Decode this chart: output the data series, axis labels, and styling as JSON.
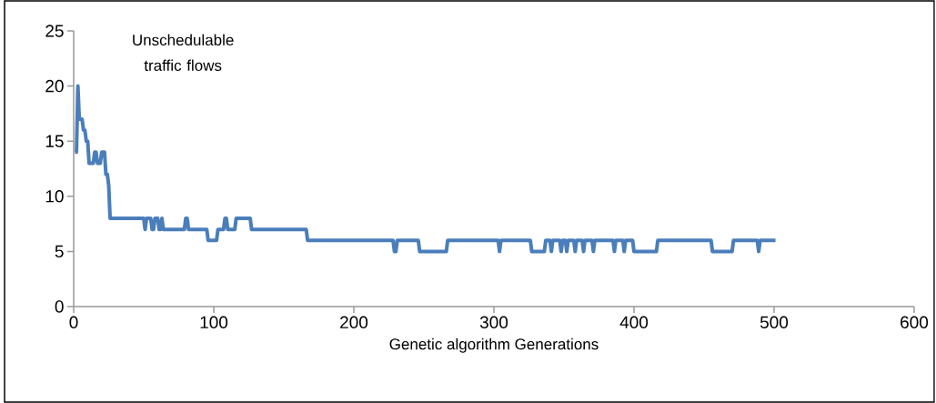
{
  "chart_data": {
    "type": "line",
    "xlabel": "Genetic algorithm Generations",
    "annotations": [
      "Unschedulable traffic flows"
    ],
    "xlim": [
      0,
      600
    ],
    "ylim": [
      0,
      25
    ],
    "xticks": [
      0,
      100,
      200,
      300,
      400,
      500,
      600
    ],
    "yticks": [
      0,
      5,
      10,
      15,
      20,
      25
    ],
    "grid": false,
    "line_style": "solid",
    "series": [
      {
        "color": "#4a7ebb",
        "x": [
          1,
          2,
          3,
          4,
          6,
          7,
          8,
          9,
          10,
          11,
          14,
          15,
          16,
          17,
          19,
          20,
          22,
          23,
          24,
          25,
          26,
          50,
          51,
          52,
          55,
          56,
          57,
          58,
          60,
          61,
          62,
          63,
          64,
          79,
          80,
          81,
          82,
          95,
          96,
          102,
          103,
          107,
          108,
          109,
          110,
          115,
          116,
          126,
          127,
          166,
          167,
          228,
          229,
          230,
          231,
          246,
          247,
          266,
          267,
          303,
          304,
          305,
          326,
          327,
          336,
          337,
          340,
          341,
          342,
          347,
          348,
          349,
          351,
          352,
          353,
          357,
          358,
          359,
          363,
          364,
          365,
          370,
          371,
          372,
          385,
          386,
          387,
          392,
          393,
          394,
          399,
          400,
          416,
          417,
          455,
          456,
          470,
          471,
          488,
          489,
          490,
          501
        ],
        "values": [
          14,
          14,
          20,
          17,
          17,
          16,
          16,
          15,
          15,
          13,
          13,
          14,
          14,
          13,
          13,
          14,
          14,
          12,
          12,
          11,
          8,
          8,
          7,
          8,
          8,
          7,
          7,
          8,
          8,
          7,
          7,
          8,
          7,
          7,
          8,
          8,
          7,
          7,
          6,
          6,
          7,
          7,
          8,
          8,
          7,
          7,
          8,
          8,
          7,
          7,
          6,
          6,
          5,
          5,
          6,
          6,
          5,
          5,
          6,
          6,
          5,
          6,
          6,
          5,
          5,
          6,
          6,
          5,
          6,
          6,
          5,
          6,
          6,
          5,
          6,
          6,
          5,
          6,
          6,
          5,
          6,
          6,
          5,
          6,
          6,
          5,
          6,
          6,
          5,
          6,
          6,
          5,
          5,
          6,
          6,
          5,
          5,
          6,
          6,
          5,
          6,
          6
        ]
      }
    ]
  }
}
